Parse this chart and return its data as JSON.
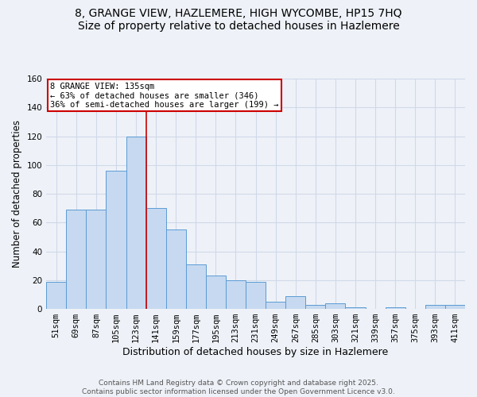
{
  "title": "8, GRANGE VIEW, HAZLEMERE, HIGH WYCOMBE, HP15 7HQ",
  "subtitle": "Size of property relative to detached houses in Hazlemere",
  "xlabel": "Distribution of detached houses by size in Hazlemere",
  "ylabel": "Number of detached properties",
  "categories": [
    "51sqm",
    "69sqm",
    "87sqm",
    "105sqm",
    "123sqm",
    "141sqm",
    "159sqm",
    "177sqm",
    "195sqm",
    "213sqm",
    "231sqm",
    "249sqm",
    "267sqm",
    "285sqm",
    "303sqm",
    "321sqm",
    "339sqm",
    "357sqm",
    "375sqm",
    "393sqm",
    "411sqm"
  ],
  "values": [
    19,
    69,
    69,
    96,
    120,
    70,
    55,
    31,
    23,
    20,
    19,
    5,
    9,
    3,
    4,
    1,
    0,
    1,
    0,
    3,
    3
  ],
  "bar_color": "#c6d9f0",
  "bar_edge_color": "#5b9bd5",
  "annotation_text_line1": "8 GRANGE VIEW: 135sqm",
  "annotation_text_line2": "← 63% of detached houses are smaller (346)",
  "annotation_text_line3": "36% of semi-detached houses are larger (199) →",
  "annotation_box_color": "#ffffff",
  "annotation_box_edge_color": "#cc0000",
  "vline_color": "#cc0000",
  "ylim": [
    0,
    160
  ],
  "yticks": [
    0,
    20,
    40,
    60,
    80,
    100,
    120,
    140,
    160
  ],
  "footer_line1": "Contains HM Land Registry data © Crown copyright and database right 2025.",
  "footer_line2": "Contains public sector information licensed under the Open Government Licence v3.0.",
  "title_fontsize": 10,
  "xlabel_fontsize": 9,
  "ylabel_fontsize": 8.5,
  "tick_fontsize": 7.5,
  "annotation_fontsize": 7.5,
  "footer_fontsize": 6.5,
  "background_color": "#eef2f8",
  "grid_color": "#d0d8e8"
}
